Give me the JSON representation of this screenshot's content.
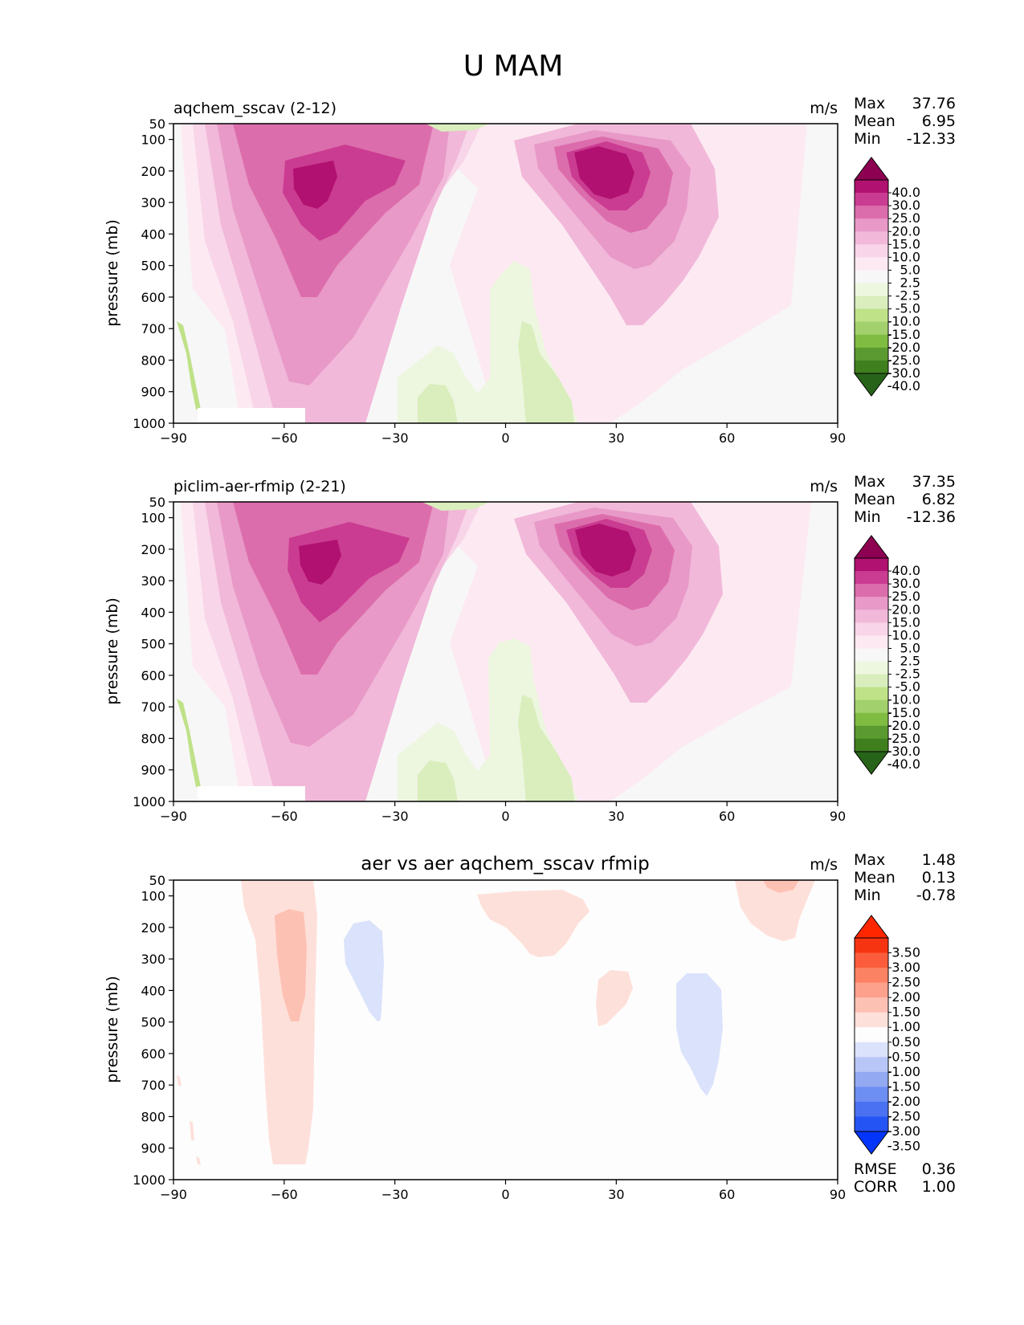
{
  "figure": {
    "title": "U MAM",
    "ylabel": "pressure (mb)",
    "units": "m/s",
    "colors": {
      "green_pink_levels": [
        "#276419",
        "#3f7f1e",
        "#5b9a30",
        "#7fbc41",
        "#a2d06c",
        "#bfe188",
        "#d9eebc",
        "#edf6df",
        "#f7f7f7",
        "#fde9f2",
        "#f8d5e8",
        "#f1b8d9",
        "#e899c7",
        "#dc6dac",
        "#ca3c91",
        "#b11170",
        "#8e0152"
      ],
      "diff_levels": [
        "#0335fa",
        "#2554f5",
        "#4a71f1",
        "#6d8ef2",
        "#93aaf3",
        "#b8c6f7",
        "#dbe2fb",
        "#fdfdfd",
        "#fee0da",
        "#fdc1b4",
        "#fda08c",
        "#fc8264",
        "#fb5d3c",
        "#f73412",
        "#ff2600"
      ]
    }
  },
  "chart_data": [
    {
      "type": "heatmap",
      "panel": "top",
      "left_title": "aqchem_sscav (2-12)",
      "units": "m/s",
      "ylabel": "pressure (mb)",
      "x_ticks": [
        "−90",
        "−60",
        "−30",
        "0",
        "30",
        "60",
        "90"
      ],
      "x_range": [
        -90,
        90
      ],
      "y_ticks": [
        "50",
        "100",
        "200",
        "300",
        "400",
        "500",
        "600",
        "700",
        "800",
        "900",
        "1000"
      ],
      "y_range": [
        1000,
        50
      ],
      "stats": [
        {
          "label": "Max",
          "value": "37.76"
        },
        {
          "label": "Mean",
          "value": "6.95"
        },
        {
          "label": "Min",
          "value": "-12.33"
        }
      ],
      "colorbar_labels": [
        "40.0",
        "30.0",
        "25.0",
        "20.0",
        "15.0",
        "10.0",
        "5.0",
        "2.5",
        "-2.5",
        "-5.0",
        "-10.0",
        "-15.0",
        "-20.0",
        "-25.0",
        "-30.0",
        "-40.0"
      ],
      "features": [
        {
          "kind": "jet",
          "lat_center": -51,
          "p_center": 240,
          "peak": 37.76
        },
        {
          "kind": "jet",
          "lat_center": 27,
          "p_center": 200,
          "peak": 35
        },
        {
          "kind": "easterly",
          "lat_center": -18,
          "p_center": 900,
          "min": -10
        },
        {
          "kind": "easterly",
          "lat_center": 8,
          "p_center": 850,
          "min": -8
        },
        {
          "kind": "easterly",
          "lat_center": -86,
          "p_center": 800,
          "min": -12.33
        }
      ]
    },
    {
      "type": "heatmap",
      "panel": "middle",
      "left_title": "piclim-aer-rfmip (2-21)",
      "units": "m/s",
      "ylabel": "pressure (mb)",
      "x_ticks": [
        "−90",
        "−60",
        "−30",
        "0",
        "30",
        "60",
        "90"
      ],
      "x_range": [
        -90,
        90
      ],
      "y_ticks": [
        "50",
        "100",
        "200",
        "300",
        "400",
        "500",
        "600",
        "700",
        "800",
        "900",
        "1000"
      ],
      "y_range": [
        1000,
        50
      ],
      "stats": [
        {
          "label": "Max",
          "value": "37.35"
        },
        {
          "label": "Mean",
          "value": "6.82"
        },
        {
          "label": "Min",
          "value": "-12.36"
        }
      ],
      "colorbar_labels": [
        "40.0",
        "30.0",
        "25.0",
        "20.0",
        "15.0",
        "10.0",
        "5.0",
        "2.5",
        "-2.5",
        "-5.0",
        "-10.0",
        "-15.0",
        "-20.0",
        "-25.0",
        "-30.0",
        "-40.0"
      ],
      "features": [
        {
          "kind": "jet",
          "lat_center": -51,
          "p_center": 240,
          "peak": 37.35
        },
        {
          "kind": "jet",
          "lat_center": 27,
          "p_center": 200,
          "peak": 35
        },
        {
          "kind": "easterly",
          "lat_center": -18,
          "p_center": 900,
          "min": -10
        },
        {
          "kind": "easterly",
          "lat_center": 8,
          "p_center": 850,
          "min": -8
        },
        {
          "kind": "easterly",
          "lat_center": -86,
          "p_center": 800,
          "min": -12.36
        }
      ]
    },
    {
      "type": "heatmap",
      "panel": "bottom",
      "title": "aer vs aer aqchem_sscav rfmip",
      "units": "m/s",
      "ylabel": "pressure (mb)",
      "x_ticks": [
        "−90",
        "−60",
        "−30",
        "0",
        "30",
        "60",
        "90"
      ],
      "x_range": [
        -90,
        90
      ],
      "y_ticks": [
        "50",
        "100",
        "200",
        "300",
        "400",
        "500",
        "600",
        "700",
        "800",
        "900",
        "1000"
      ],
      "y_range": [
        1000,
        50
      ],
      "stats": [
        {
          "label": "Max",
          "value": "1.48"
        },
        {
          "label": "Mean",
          "value": "0.13"
        },
        {
          "label": "Min",
          "value": "-0.78"
        }
      ],
      "extra_stats": [
        {
          "label": "RMSE",
          "value": "0.36"
        },
        {
          "label": "CORR",
          "value": "1.00"
        }
      ],
      "colorbar_labels": [
        "3.50",
        "3.00",
        "2.50",
        "2.00",
        "1.50",
        "1.00",
        "0.50",
        "-0.50",
        "-1.00",
        "-1.50",
        "-2.00",
        "-2.50",
        "-3.00",
        "-3.50"
      ],
      "features": [
        {
          "kind": "positive",
          "lat_center": -58,
          "p_center": 450,
          "value": 1.0
        },
        {
          "kind": "negative",
          "lat_center": -38,
          "p_center": 300,
          "value": -0.6
        },
        {
          "kind": "positive",
          "lat_center": 10,
          "p_center": 120,
          "value": 0.6
        },
        {
          "kind": "positive",
          "lat_center": 30,
          "p_center": 330,
          "value": 0.6
        },
        {
          "kind": "negative",
          "lat_center": 53,
          "p_center": 380,
          "value": -0.6
        },
        {
          "kind": "positive",
          "lat_center": 76,
          "p_center": 120,
          "value": 0.9
        }
      ]
    }
  ]
}
